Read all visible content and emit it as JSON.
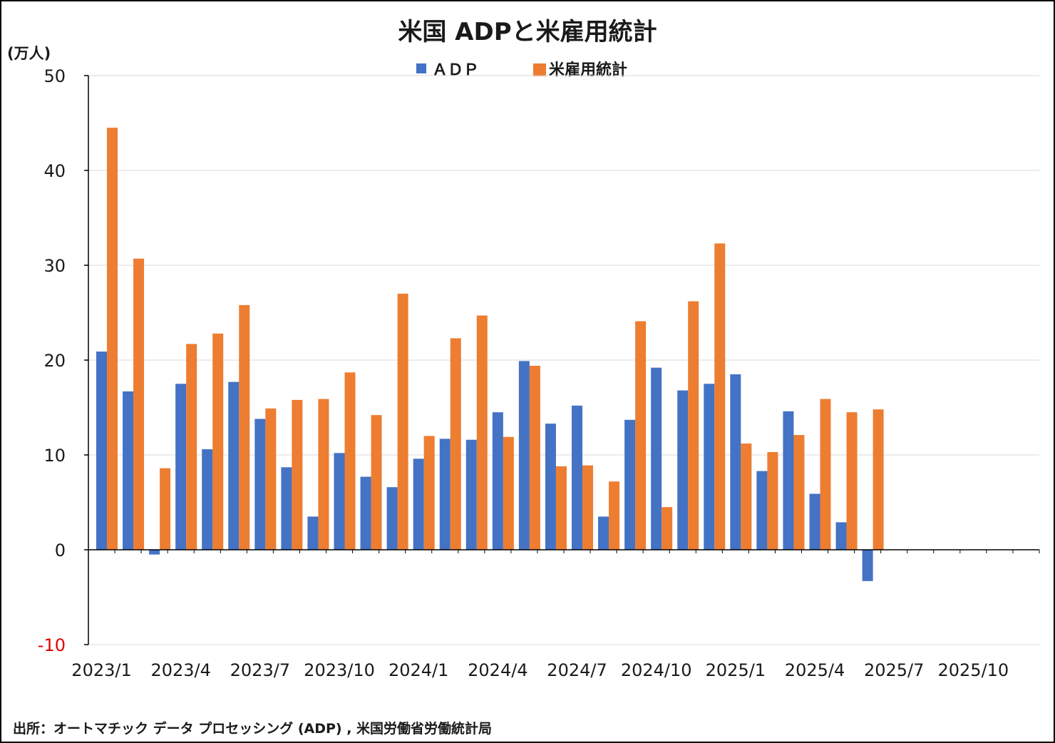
{
  "chart_data": {
    "type": "bar",
    "title": "米国 ADPと米雇用統計",
    "unit_label": "(万人)",
    "ylim": [
      -10,
      50
    ],
    "y_ticks": [
      50,
      40,
      30,
      20,
      10,
      0,
      -10
    ],
    "negative_tick_color": "#e00000",
    "grid": true,
    "legend_position": "top-center",
    "categories": [
      "2023/1",
      "2023/2",
      "2023/3",
      "2023/4",
      "2023/5",
      "2023/6",
      "2023/7",
      "2023/8",
      "2023/9",
      "2023/10",
      "2023/11",
      "2023/12",
      "2024/1",
      "2024/2",
      "2024/3",
      "2024/4",
      "2024/5",
      "2024/6",
      "2024/7",
      "2024/8",
      "2024/9",
      "2024/10",
      "2024/11",
      "2024/12",
      "2025/1",
      "2025/2",
      "2025/3",
      "2025/4",
      "2025/5",
      "2025/6",
      "2025/7",
      "2025/8",
      "2025/9",
      "2025/10",
      "2025/11",
      "2025/12"
    ],
    "x_tick_labels": [
      "2023/1",
      "2023/4",
      "2023/7",
      "2023/10",
      "2024/1",
      "2024/4",
      "2024/7",
      "2024/10",
      "2025/1",
      "2025/4",
      "2025/7",
      "2025/10"
    ],
    "series": [
      {
        "name": "ADP",
        "legend_label": "ＡＤＰ",
        "color": "#4472c4",
        "values": [
          20.9,
          16.7,
          -0.5,
          17.5,
          10.6,
          17.7,
          13.8,
          8.7,
          3.5,
          10.2,
          7.7,
          6.6,
          9.6,
          11.7,
          11.6,
          14.5,
          19.9,
          13.3,
          15.2,
          3.5,
          13.7,
          19.2,
          16.8,
          17.5,
          18.5,
          8.3,
          14.6,
          5.9,
          2.9,
          -3.3,
          null,
          null,
          null,
          null,
          null,
          null
        ]
      },
      {
        "name": "米雇用統計",
        "legend_label": "米雇用統計",
        "color": "#ed7d31",
        "values": [
          44.5,
          30.7,
          8.6,
          21.7,
          22.8,
          25.8,
          14.9,
          15.8,
          15.9,
          18.7,
          14.2,
          27.0,
          12.0,
          22.3,
          24.7,
          11.9,
          19.4,
          8.8,
          8.9,
          7.2,
          24.1,
          4.5,
          26.2,
          32.3,
          11.2,
          10.3,
          12.1,
          15.9,
          14.5,
          14.8,
          null,
          null,
          null,
          null,
          null,
          null
        ]
      }
    ],
    "source": "出所：オートマチック データ プロセッシング (ADP) , 米国労働省労働統計局"
  }
}
